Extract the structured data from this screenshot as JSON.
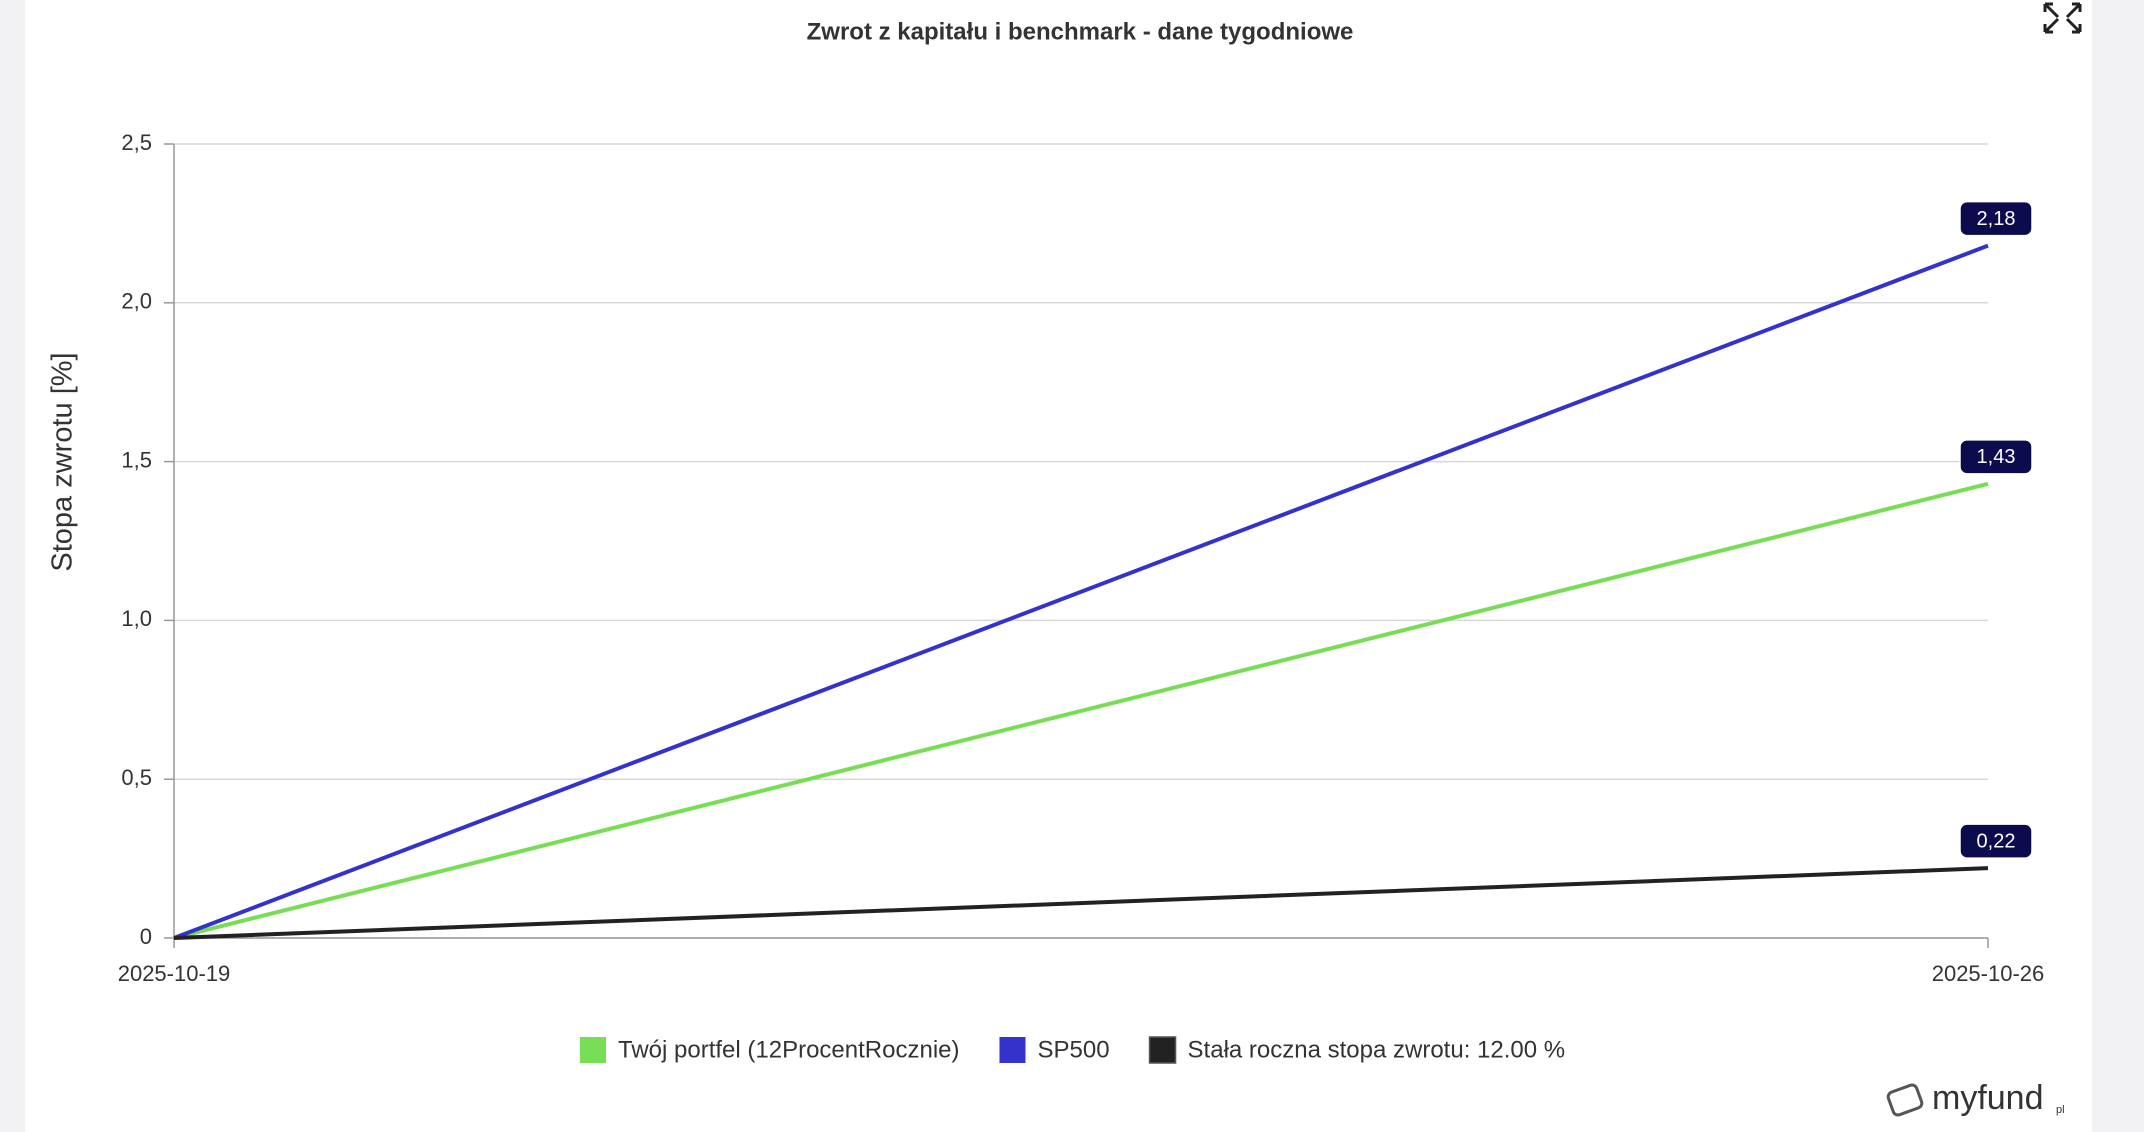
{
  "chart_data": {
    "type": "line",
    "title": "Zwrot z kapitału i benchmark - dane tygodniowe",
    "y_label": "Stopa zwrotu [%]",
    "x": [
      "2025-10-19",
      "2025-10-26"
    ],
    "series": [
      {
        "name": "Twój portfel (12ProcentRocznie)",
        "color": "#77dd55",
        "values": [
          0,
          1.43
        ],
        "value_labels": [
          null,
          "1,43"
        ]
      },
      {
        "name": "SP500",
        "color": "#3333cc",
        "values": [
          0,
          2.18
        ],
        "value_labels": [
          null,
          "2,18"
        ]
      },
      {
        "name": "Stała roczna stopa zwrotu: 12.00 %",
        "color": "#222222",
        "values": [
          0,
          0.22
        ],
        "value_labels": [
          null,
          "0,22"
        ]
      }
    ],
    "ylim": [
      0,
      2.5
    ],
    "yticks": [
      0,
      {
        "value": 0.5,
        "label": "0,5"
      },
      {
        "value": 1.0,
        "label": "1,0"
      },
      {
        "value": 1.5,
        "label": "1,5"
      },
      {
        "value": 2.0,
        "label": "2,0"
      },
      {
        "value": 2.5,
        "label": "2,5"
      }
    ],
    "grid": true,
    "legend": "bottom"
  },
  "logo": {
    "name": "myfund",
    "suffix": "pl"
  }
}
